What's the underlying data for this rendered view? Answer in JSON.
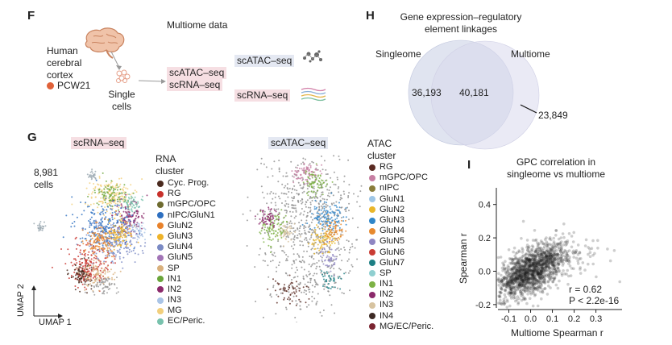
{
  "panelF": {
    "letter": "F",
    "title": "Multiome data",
    "source": [
      "Human",
      "cerebral",
      "cortex"
    ],
    "sample": "PCW21",
    "sample_color": "#e0623a",
    "single_cells": [
      "Single",
      "cells"
    ],
    "combined": [
      "scATAC–seq",
      "scRNA–seq"
    ],
    "atac_label": "scATAC–seq",
    "rna_label": "scRNA–seq"
  },
  "panelH": {
    "letter": "H",
    "title": [
      "Gene expression–regulatory",
      "element linkages"
    ],
    "left_label": "Singleome",
    "right_label": "Multiome",
    "left_only": "36,193",
    "overlap": "40,181",
    "right_only": "23,849"
  },
  "panelG": {
    "letter": "G",
    "rna_title": "scRNA–seq",
    "atac_title": "scATAC–seq",
    "cell_count": [
      "8,981",
      "cells"
    ],
    "umap_y": "UMAP 2",
    "umap_x": "UMAP 1",
    "rna_legend_title": [
      "RNA",
      "cluster"
    ],
    "rna_legend": [
      {
        "label": "Cyc. Prog.",
        "color": "#4a2a1e"
      },
      {
        "label": "RG",
        "color": "#c8312b"
      },
      {
        "label": "mGPC/OPC",
        "color": "#6e6b2f"
      },
      {
        "label": "nIPC/GluN1",
        "color": "#2d6fc0"
      },
      {
        "label": "GluN2",
        "color": "#e8822b"
      },
      {
        "label": "GluN3",
        "color": "#eeb32a"
      },
      {
        "label": "GluN4",
        "color": "#7b8ac4"
      },
      {
        "label": "GluN5",
        "color": "#a274b6"
      },
      {
        "label": "SP",
        "color": "#d9b07c"
      },
      {
        "label": "IN1",
        "color": "#6aa53a"
      },
      {
        "label": "IN2",
        "color": "#8b2a6b"
      },
      {
        "label": "IN3",
        "color": "#a9c4e6"
      },
      {
        "label": "MG",
        "color": "#f2cf7c"
      },
      {
        "label": "EC/Peric.",
        "color": "#78c2ad"
      }
    ],
    "atac_legend_title": [
      "ATAC",
      "cluster"
    ],
    "atac_legend": [
      {
        "label": "RG",
        "color": "#5a2a22"
      },
      {
        "label": "mGPC/OPC",
        "color": "#c77fa3"
      },
      {
        "label": "nIPC",
        "color": "#8a7d3a"
      },
      {
        "label": "GluN1",
        "color": "#9ec6e6"
      },
      {
        "label": "GluN2",
        "color": "#e9b62a"
      },
      {
        "label": "GluN3",
        "color": "#2f86c9"
      },
      {
        "label": "GluN4",
        "color": "#e7892e"
      },
      {
        "label": "GluN5",
        "color": "#8f86c2"
      },
      {
        "label": "GluN6",
        "color": "#c93c34"
      },
      {
        "label": "GluN7",
        "color": "#1d7f84"
      },
      {
        "label": "SP",
        "color": "#8fcfd0"
      },
      {
        "label": "IN1",
        "color": "#7db245"
      },
      {
        "label": "IN2",
        "color": "#8b2a6b"
      },
      {
        "label": "IN3",
        "color": "#d7c3a0"
      },
      {
        "label": "IN4",
        "color": "#3d2a24"
      },
      {
        "label": "MG/EC/Peric.",
        "color": "#7a2430"
      }
    ]
  },
  "panelI": {
    "letter": "I",
    "title": [
      "GPC correlation in",
      "singleome vs multiome"
    ],
    "ylabel": "Spearman r",
    "xlabel": "Multiome Spearman r",
    "stat_r": "r = 0.62",
    "stat_p": "P < 2.2e-16"
  },
  "chart_data": {
    "type": "scatter",
    "title": "GPC correlation in singleome vs multiome",
    "xlabel": "Multiome Spearman r",
    "ylabel": "Spearman r",
    "xlim": [
      -0.15,
      0.42
    ],
    "ylim": [
      -0.22,
      0.5
    ],
    "x_ticks": [
      "-0.1",
      "0.0",
      "0.1",
      "0.2",
      "0.3"
    ],
    "y_ticks": [
      "-0.2",
      "0.0",
      "0.2",
      "0.4"
    ],
    "correlation": 0.62,
    "n_points_approx": 1600,
    "center": [
      0.0,
      0.0
    ],
    "spread": [
      0.08,
      0.08
    ]
  }
}
